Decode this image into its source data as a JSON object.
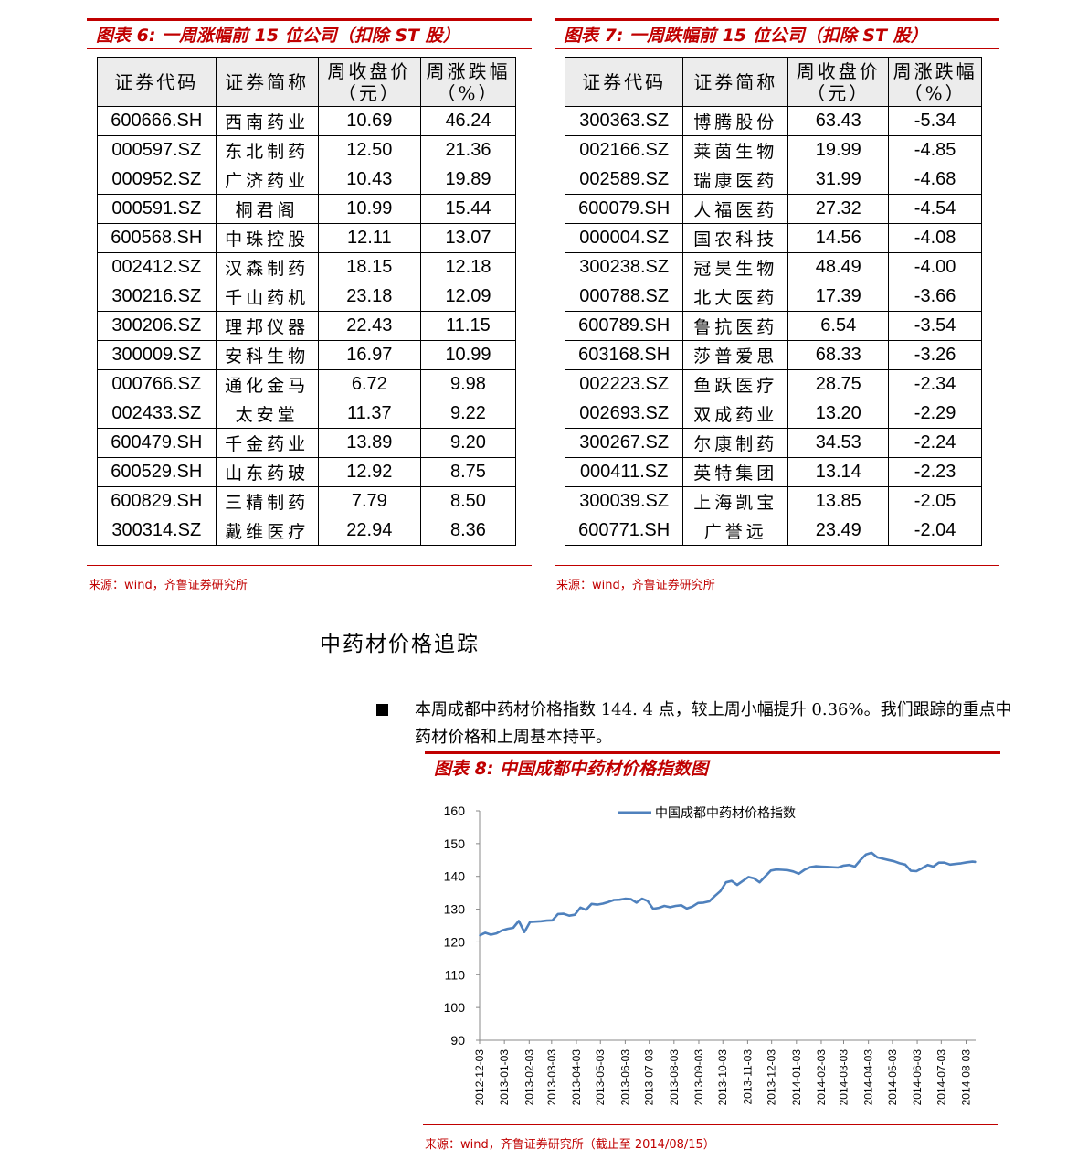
{
  "fig6": {
    "title": "图表 6:  一周涨幅前 15 位公司（扣除 ST 股）",
    "headers": [
      "证券代码",
      "证券简称",
      "周收盘价（元）",
      "周涨跌幅（%）"
    ],
    "rows": [
      [
        "600666.SH",
        "西南药业",
        "10.69",
        "46.24"
      ],
      [
        "000597.SZ",
        "东北制药",
        "12.50",
        "21.36"
      ],
      [
        "000952.SZ",
        "广济药业",
        "10.43",
        "19.89"
      ],
      [
        "000591.SZ",
        "桐君阁",
        "10.99",
        "15.44"
      ],
      [
        "600568.SH",
        "中珠控股",
        "12.11",
        "13.07"
      ],
      [
        "002412.SZ",
        "汉森制药",
        "18.15",
        "12.18"
      ],
      [
        "300216.SZ",
        "千山药机",
        "23.18",
        "12.09"
      ],
      [
        "300206.SZ",
        "理邦仪器",
        "22.43",
        "11.15"
      ],
      [
        "300009.SZ",
        "安科生物",
        "16.97",
        "10.99"
      ],
      [
        "000766.SZ",
        "通化金马",
        "6.72",
        "9.98"
      ],
      [
        "002433.SZ",
        "太安堂",
        "11.37",
        "9.22"
      ],
      [
        "600479.SH",
        "千金药业",
        "13.89",
        "9.20"
      ],
      [
        "600529.SH",
        "山东药玻",
        "12.92",
        "8.75"
      ],
      [
        "600829.SH",
        "三精制药",
        "7.79",
        "8.50"
      ],
      [
        "300314.SZ",
        "戴维医疗",
        "22.94",
        "8.36"
      ]
    ],
    "source": "来源：wind，齐鲁证券研究所"
  },
  "fig7": {
    "title": "图表 7:  一周跌幅前 15 位公司（扣除 ST 股）",
    "headers": [
      "证券代码",
      "证券简称",
      "周收盘价（元）",
      "周涨跌幅（%）"
    ],
    "rows": [
      [
        "300363.SZ",
        "博腾股份",
        "63.43",
        "-5.34"
      ],
      [
        "002166.SZ",
        "莱茵生物",
        "19.99",
        "-4.85"
      ],
      [
        "002589.SZ",
        "瑞康医药",
        "31.99",
        "-4.68"
      ],
      [
        "600079.SH",
        "人福医药",
        "27.32",
        "-4.54"
      ],
      [
        "000004.SZ",
        "国农科技",
        "14.56",
        "-4.08"
      ],
      [
        "300238.SZ",
        "冠昊生物",
        "48.49",
        "-4.00"
      ],
      [
        "000788.SZ",
        "北大医药",
        "17.39",
        "-3.66"
      ],
      [
        "600789.SH",
        "鲁抗医药",
        "6.54",
        "-3.54"
      ],
      [
        "603168.SH",
        "莎普爱思",
        "68.33",
        "-3.26"
      ],
      [
        "002223.SZ",
        "鱼跃医疗",
        "28.75",
        "-2.34"
      ],
      [
        "002693.SZ",
        "双成药业",
        "13.20",
        "-2.29"
      ],
      [
        "300267.SZ",
        "尔康制药",
        "34.53",
        "-2.24"
      ],
      [
        "000411.SZ",
        "英特集团",
        "13.14",
        "-2.23"
      ],
      [
        "300039.SZ",
        "上海凯宝",
        "13.85",
        "-2.05"
      ],
      [
        "600771.SH",
        "广誉远",
        "23.49",
        "-2.04"
      ]
    ],
    "source": "来源：wind，齐鲁证券研究所"
  },
  "section": {
    "title": "中药材价格追踪",
    "paragraph": "本周成都中药材价格指数 144. 4 点，较上周小幅提升 0.36%。我们跟踪的重点中药材价格和上周基本持平。"
  },
  "fig8": {
    "title": "图表 8:  中国成都中药材价格指数图",
    "source": "来源：wind，齐鲁证券研究所（截止至 2014/08/15）"
  },
  "colors": {
    "accent": "#c00000",
    "line": "#4f81bd"
  },
  "chart_data": {
    "type": "line",
    "title": "",
    "xlabel": "",
    "ylabel": "",
    "ylim": [
      90,
      160
    ],
    "yticks": [
      90,
      100,
      110,
      120,
      130,
      140,
      150,
      160
    ],
    "xticks": [
      "2012-12-03",
      "2013-01-03",
      "2013-02-03",
      "2013-03-03",
      "2013-04-03",
      "2013-05-03",
      "2013-06-03",
      "2013-07-03",
      "2013-08-03",
      "2013-09-03",
      "2013-10-03",
      "2013-11-03",
      "2013-12-03",
      "2014-01-03",
      "2014-02-03",
      "2014-03-03",
      "2014-04-03",
      "2014-05-03",
      "2014-06-03",
      "2014-07-03",
      "2014-08-03"
    ],
    "legend": "top-right",
    "grid": false,
    "series": [
      {
        "name": "中国成都中药材价格指数",
        "x": [
          "2012-12-03",
          "2012-12-10",
          "2012-12-17",
          "2012-12-24",
          "2012-12-31",
          "2013-01-07",
          "2013-01-14",
          "2013-01-21",
          "2013-01-28",
          "2013-02-04",
          "2013-02-11",
          "2013-02-18",
          "2013-02-25",
          "2013-03-04",
          "2013-03-11",
          "2013-03-18",
          "2013-03-25",
          "2013-04-01",
          "2013-04-08",
          "2013-04-15",
          "2013-04-22",
          "2013-04-29",
          "2013-05-06",
          "2013-05-13",
          "2013-05-20",
          "2013-05-27",
          "2013-06-03",
          "2013-06-10",
          "2013-06-17",
          "2013-06-24",
          "2013-07-01",
          "2013-07-08",
          "2013-07-15",
          "2013-07-22",
          "2013-07-29",
          "2013-08-05",
          "2013-08-12",
          "2013-08-19",
          "2013-08-26",
          "2013-09-02",
          "2013-09-09",
          "2013-09-16",
          "2013-09-23",
          "2013-09-30",
          "2013-10-07",
          "2013-10-14",
          "2013-10-21",
          "2013-10-28",
          "2013-11-04",
          "2013-11-11",
          "2013-11-18",
          "2013-11-25",
          "2013-12-02",
          "2013-12-09",
          "2013-12-16",
          "2013-12-23",
          "2013-12-30",
          "2014-01-06",
          "2014-01-13",
          "2014-01-20",
          "2014-01-27",
          "2014-02-03",
          "2014-02-10",
          "2014-02-17",
          "2014-02-24",
          "2014-03-03",
          "2014-03-10",
          "2014-03-17",
          "2014-03-24",
          "2014-03-31",
          "2014-04-07",
          "2014-04-14",
          "2014-04-21",
          "2014-04-28",
          "2014-05-05",
          "2014-05-12",
          "2014-05-19",
          "2014-05-26",
          "2014-06-02",
          "2014-06-09",
          "2014-06-16",
          "2014-06-23",
          "2014-06-30",
          "2014-07-07",
          "2014-07-14",
          "2014-07-21",
          "2014-07-28",
          "2014-08-04",
          "2014-08-11",
          "2014-08-15"
        ],
        "values": [
          122.0,
          122.8,
          122.2,
          122.6,
          123.5,
          124.0,
          124.3,
          126.4,
          123.0,
          126.1,
          126.2,
          126.3,
          126.5,
          126.6,
          128.5,
          128.6,
          128.0,
          128.3,
          130.5,
          129.8,
          131.6,
          131.4,
          131.7,
          132.2,
          132.8,
          132.9,
          133.2,
          133.1,
          132.0,
          133.2,
          132.5,
          130.1,
          130.4,
          131.0,
          130.6,
          131.0,
          131.2,
          130.2,
          130.8,
          131.9,
          132.0,
          132.4,
          134.0,
          135.5,
          138.2,
          138.6,
          137.4,
          138.6,
          139.8,
          139.4,
          138.2,
          140.0,
          141.8,
          142.1,
          142.0,
          141.9,
          141.5,
          140.8,
          142.0,
          142.8,
          143.1,
          143.0,
          142.9,
          142.8,
          142.7,
          143.3,
          143.5,
          143.0,
          145.0,
          146.7,
          147.2,
          145.8,
          145.4,
          145.0,
          144.6,
          144.0,
          143.6,
          141.7,
          141.6,
          142.5,
          143.5,
          143.0,
          144.2,
          144.2,
          143.6,
          143.8,
          144.0,
          144.3,
          144.5,
          144.4
        ]
      }
    ]
  }
}
